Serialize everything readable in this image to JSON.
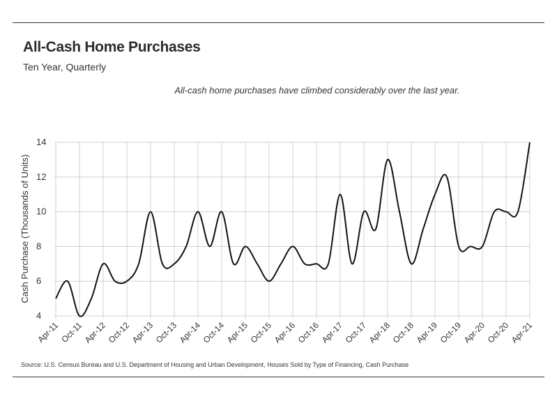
{
  "header": {
    "title": "All-Cash Home Purchases",
    "subtitle": "Ten Year, Quarterly"
  },
  "annotation": "All-cash home purchases have climbed considerably over the last year.",
  "source": "Source:  U.S. Census Bureau and U.S. Department of Housing and Urban Development, Houses Sold by Type of Financing, Cash Purchase",
  "colors": {
    "line": "#111111",
    "grid": "#d0d0d0",
    "rule": "#333333"
  },
  "chart_data": {
    "type": "line",
    "title": "All-Cash Home Purchases",
    "subtitle": "Ten Year, Quarterly",
    "xlabel": "",
    "ylabel": "Cash Purchase (Thousands of Units)",
    "ylim": [
      4,
      14
    ],
    "yticks": [
      4,
      6,
      8,
      10,
      12,
      14
    ],
    "grid": true,
    "legend": "none",
    "x_tick_labels": [
      "Apr-11",
      "Oct-11",
      "Apr-12",
      "Oct-12",
      "Apr-13",
      "Oct-13",
      "Apr-14",
      "Oct-14",
      "Apr-15",
      "Oct-15",
      "Apr-16",
      "Oct-16",
      "Apr-17",
      "Oct-17",
      "Apr-18",
      "Oct-18",
      "Apr-19",
      "Oct-19",
      "Apr-20",
      "Oct-20",
      "Apr-21"
    ],
    "x": [
      "Apr-11",
      "Jul-11",
      "Oct-11",
      "Jan-12",
      "Apr-12",
      "Jul-12",
      "Oct-12",
      "Jan-13",
      "Apr-13",
      "Jul-13",
      "Oct-13",
      "Jan-14",
      "Apr-14",
      "Jul-14",
      "Oct-14",
      "Jan-15",
      "Apr-15",
      "Jul-15",
      "Oct-15",
      "Jan-16",
      "Apr-16",
      "Jul-16",
      "Oct-16",
      "Jan-17",
      "Apr-17",
      "Jul-17",
      "Oct-17",
      "Jan-18",
      "Apr-18",
      "Jul-18",
      "Oct-18",
      "Jan-19",
      "Apr-19",
      "Jul-19",
      "Oct-19",
      "Jan-20",
      "Apr-20",
      "Jul-20",
      "Oct-20",
      "Jan-21",
      "Apr-21"
    ],
    "series": [
      {
        "values": [
          5,
          6,
          4,
          5,
          7,
          6,
          6,
          7,
          10,
          7,
          7,
          8,
          10,
          8,
          10,
          7,
          8,
          7,
          6,
          7,
          8,
          7,
          7,
          7,
          11,
          7,
          10,
          9,
          13,
          10,
          7,
          9,
          11,
          12,
          8,
          8,
          8,
          10,
          10,
          10,
          14
        ]
      }
    ]
  }
}
